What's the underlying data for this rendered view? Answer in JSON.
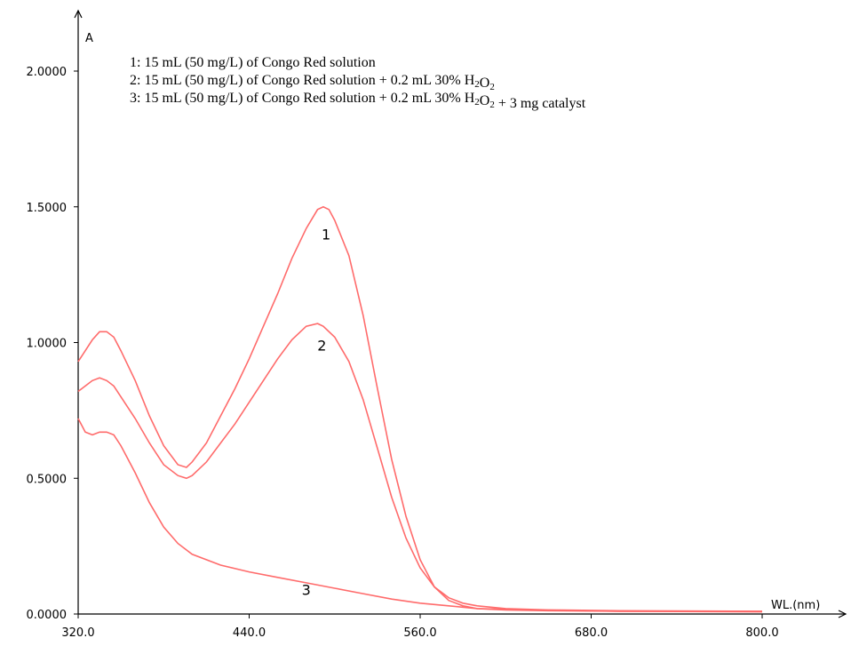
{
  "chart_data": {
    "type": "line",
    "xlabel": "WL.(nm)",
    "ylabel": "A",
    "xlim": [
      320,
      800
    ],
    "ylim": [
      0,
      2.0
    ],
    "x_ticks": [
      "320.0",
      "440.0",
      "560.0",
      "680.0",
      "800.0"
    ],
    "y_ticks": [
      "0.0000",
      "0.5000",
      "1.0000",
      "1.5000",
      "2.0000"
    ],
    "legend": {
      "placement": "top",
      "entries": [
        {
          "prefix": "1: 15 mL (50 mg/L) of Congo Red solution",
          "parts": []
        },
        {
          "prefix": "2: 15 mL (50 mg/L) of Congo Red solution + 0.2 mL 30% H",
          "parts": [
            "2",
            "O",
            "2"
          ]
        },
        {
          "prefix": "3: 15 mL (50 mg/L) of Congo Red solution + 0.2 mL 30% H",
          "parts": [
            "2",
            "O",
            "2",
            " + 3 mg catalyst"
          ]
        }
      ]
    },
    "series": [
      {
        "label": "1",
        "label_at": [
          494,
          1.38
        ],
        "color": "#ff6b6b",
        "points": [
          [
            320,
            0.93
          ],
          [
            325,
            0.97
          ],
          [
            330,
            1.01
          ],
          [
            335,
            1.04
          ],
          [
            340,
            1.04
          ],
          [
            345,
            1.02
          ],
          [
            350,
            0.97
          ],
          [
            360,
            0.86
          ],
          [
            370,
            0.73
          ],
          [
            380,
            0.62
          ],
          [
            390,
            0.55
          ],
          [
            396,
            0.54
          ],
          [
            400,
            0.56
          ],
          [
            410,
            0.63
          ],
          [
            420,
            0.73
          ],
          [
            430,
            0.83
          ],
          [
            440,
            0.94
          ],
          [
            450,
            1.06
          ],
          [
            460,
            1.18
          ],
          [
            470,
            1.31
          ],
          [
            480,
            1.42
          ],
          [
            488,
            1.49
          ],
          [
            492,
            1.5
          ],
          [
            496,
            1.49
          ],
          [
            500,
            1.45
          ],
          [
            510,
            1.32
          ],
          [
            520,
            1.1
          ],
          [
            530,
            0.83
          ],
          [
            540,
            0.57
          ],
          [
            550,
            0.36
          ],
          [
            560,
            0.2
          ],
          [
            570,
            0.1
          ],
          [
            580,
            0.05
          ],
          [
            590,
            0.03
          ],
          [
            600,
            0.02
          ],
          [
            620,
            0.015
          ],
          [
            650,
            0.012
          ],
          [
            700,
            0.01
          ],
          [
            800,
            0.01
          ]
        ]
      },
      {
        "label": "2",
        "label_at": [
          491,
          0.97
        ],
        "color": "#ff6b6b",
        "points": [
          [
            320,
            0.82
          ],
          [
            325,
            0.84
          ],
          [
            330,
            0.86
          ],
          [
            335,
            0.87
          ],
          [
            340,
            0.86
          ],
          [
            345,
            0.84
          ],
          [
            350,
            0.8
          ],
          [
            360,
            0.72
          ],
          [
            370,
            0.63
          ],
          [
            380,
            0.55
          ],
          [
            390,
            0.51
          ],
          [
            396,
            0.5
          ],
          [
            400,
            0.51
          ],
          [
            410,
            0.56
          ],
          [
            420,
            0.63
          ],
          [
            430,
            0.7
          ],
          [
            440,
            0.78
          ],
          [
            450,
            0.86
          ],
          [
            460,
            0.94
          ],
          [
            470,
            1.01
          ],
          [
            480,
            1.06
          ],
          [
            488,
            1.07
          ],
          [
            492,
            1.06
          ],
          [
            500,
            1.02
          ],
          [
            510,
            0.93
          ],
          [
            520,
            0.79
          ],
          [
            530,
            0.61
          ],
          [
            540,
            0.43
          ],
          [
            550,
            0.28
          ],
          [
            560,
            0.17
          ],
          [
            570,
            0.1
          ],
          [
            580,
            0.06
          ],
          [
            590,
            0.04
          ],
          [
            600,
            0.03
          ],
          [
            620,
            0.02
          ],
          [
            650,
            0.015
          ],
          [
            700,
            0.012
          ],
          [
            800,
            0.01
          ]
        ]
      },
      {
        "label": "3",
        "label_at": [
          480,
          0.07
        ],
        "color": "#ff6b6b",
        "points": [
          [
            320,
            0.72
          ],
          [
            325,
            0.67
          ],
          [
            330,
            0.66
          ],
          [
            335,
            0.67
          ],
          [
            340,
            0.67
          ],
          [
            345,
            0.66
          ],
          [
            350,
            0.62
          ],
          [
            360,
            0.52
          ],
          [
            370,
            0.41
          ],
          [
            380,
            0.32
          ],
          [
            390,
            0.26
          ],
          [
            400,
            0.22
          ],
          [
            420,
            0.18
          ],
          [
            440,
            0.155
          ],
          [
            460,
            0.135
          ],
          [
            480,
            0.115
          ],
          [
            500,
            0.095
          ],
          [
            520,
            0.075
          ],
          [
            540,
            0.055
          ],
          [
            560,
            0.04
          ],
          [
            580,
            0.03
          ],
          [
            600,
            0.02
          ],
          [
            640,
            0.015
          ],
          [
            700,
            0.01
          ],
          [
            800,
            0.008
          ]
        ]
      }
    ]
  }
}
